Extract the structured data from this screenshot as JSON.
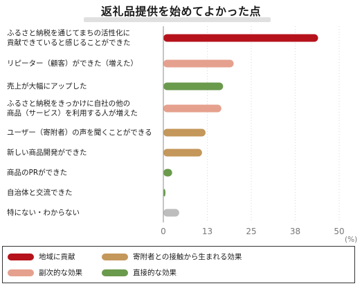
{
  "title": "返礼品提供を始めてよかった点",
  "unit_label": "(%)",
  "colors": {
    "regional": "#b5121b",
    "donor_contact": "#c4975a",
    "secondary": "#e5a18e",
    "direct": "#6a9a4c",
    "neutral": "#bdbdbd",
    "axis": "#9e9e9e"
  },
  "legend": [
    {
      "label": "地域に貢献",
      "color_key": "regional"
    },
    {
      "label": "寄附者との接触から生まれる効果",
      "color_key": "donor_contact"
    },
    {
      "label": "副次的な効果",
      "color_key": "secondary"
    },
    {
      "label": "直接的な効果",
      "color_key": "direct"
    }
  ],
  "chart_data": {
    "type": "bar",
    "orientation": "horizontal",
    "title": "返礼品提供を始めてよかった点",
    "xlabel": "",
    "ylabel": "",
    "unit": "%",
    "xlim": [
      0,
      50
    ],
    "ticks": [
      "0",
      "13",
      "25",
      "38",
      "50"
    ],
    "tick_values": [
      0,
      12.5,
      25,
      37.5,
      50
    ],
    "grid": true,
    "legend_position": "bottom",
    "categories": [
      {
        "label_lines": [
          "ふるさと納税を通じてまちの活性化に",
          "貢献できていると感じることができた"
        ],
        "value": 44,
        "color_key": "regional"
      },
      {
        "label_lines": [
          "リピーター（顧客）ができた（増えた）"
        ],
        "value": 20,
        "color_key": "secondary"
      },
      {
        "label_lines": [
          "売上が大幅にアップした"
        ],
        "value": 17,
        "color_key": "direct"
      },
      {
        "label_lines": [
          "ふるさと納税をきっかけに自社の他の",
          "商品（サービス）を利用する人が増えた"
        ],
        "value": 16.5,
        "color_key": "secondary"
      },
      {
        "label_lines": [
          "ユーザー（寄附者）の声を聞くことができる"
        ],
        "value": 12,
        "color_key": "donor_contact"
      },
      {
        "label_lines": [
          "新しい商品開発ができた"
        ],
        "value": 11,
        "color_key": "donor_contact"
      },
      {
        "label_lines": [
          "商品のPRができた"
        ],
        "value": 2.5,
        "color_key": "direct"
      },
      {
        "label_lines": [
          "自治体と交流できた"
        ],
        "value": 0.6,
        "color_key": "direct"
      },
      {
        "label_lines": [
          "特にない・わからない"
        ],
        "value": 4.5,
        "color_key": "neutral"
      }
    ]
  }
}
